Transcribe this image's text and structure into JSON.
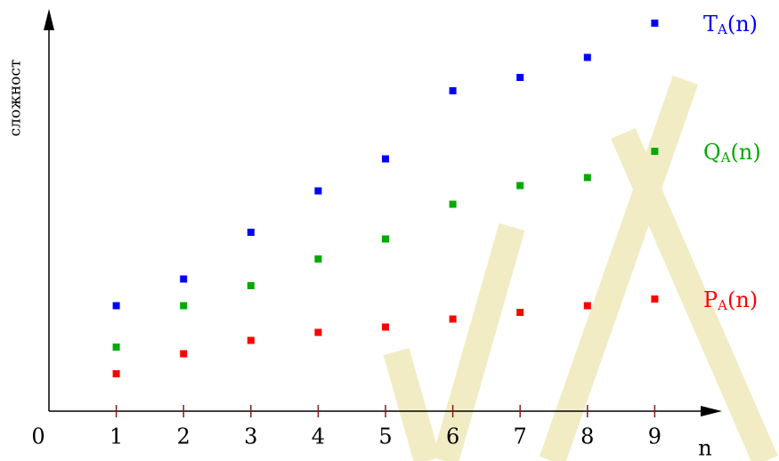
{
  "chart_data": {
    "type": "scatter",
    "x_label": "n",
    "y_label": "сложност",
    "x": [
      1,
      2,
      3,
      4,
      5,
      6,
      7,
      8
    ],
    "series": [
      {
        "name": "TA(n)",
        "color": "#0000ff",
        "values": [
          7.9,
          9.9,
          13.4,
          16.5,
          18.9,
          24,
          25,
          26.5
        ]
      },
      {
        "name": "QA(n)",
        "color": "#00aa00",
        "values": [
          4.8,
          7.9,
          9.4,
          11.4,
          12.9,
          15.5,
          16.9,
          17.5
        ]
      },
      {
        "name": "PA(n)",
        "color": "#ff0000",
        "values": [
          2.8,
          4.3,
          5.3,
          5.9,
          6.3,
          6.9,
          7.4,
          7.9
        ]
      }
    ],
    "xlim": [
      0,
      10
    ],
    "ylim": [
      0,
      30
    ],
    "xticks": [
      0,
      1,
      2,
      3,
      4,
      5,
      6,
      7,
      8,
      9
    ]
  }
}
